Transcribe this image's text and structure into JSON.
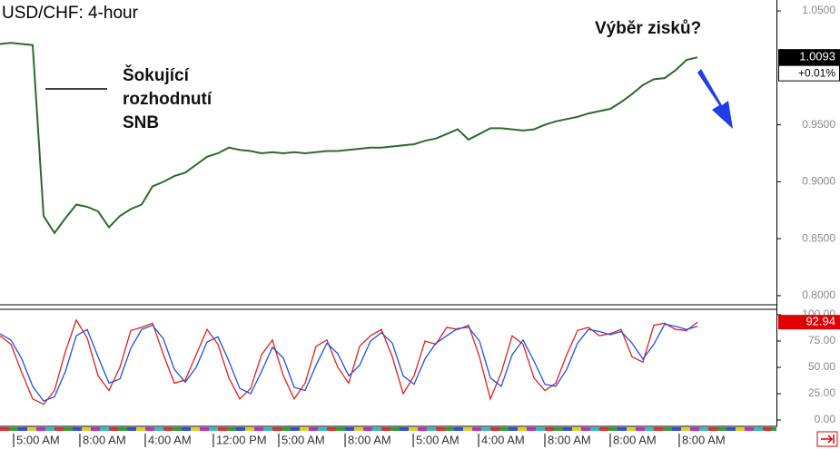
{
  "chart_data": [
    {
      "type": "line",
      "title": "USD/CHF: 4-hour",
      "annotations": [
        "Šokující",
        "rozhodnutí",
        "SNB",
        "Výběr zisků?"
      ],
      "current": {
        "value": 1.0093,
        "label": "1.0093"
      },
      "change_label": "+0.01%",
      "xlim": [
        0,
        71.25
      ],
      "ylim": [
        0.792,
        1.0596
      ],
      "yticks": [
        {
          "value": 1.05,
          "label": "1.0500"
        },
        {
          "value": 0.95,
          "label": "0.9500"
        },
        {
          "value": 0.9,
          "label": "0.9000"
        },
        {
          "value": 0.85,
          "label": "0.8500"
        },
        {
          "value": 0.8,
          "label": "0.8000"
        }
      ],
      "x": [
        0,
        1,
        2,
        3,
        4,
        5,
        6,
        7,
        8,
        9,
        10,
        11,
        12,
        13,
        14,
        15,
        16,
        17,
        18,
        19,
        20,
        21,
        22,
        23,
        24,
        25,
        26,
        27,
        28,
        29,
        30,
        31,
        32,
        33,
        34,
        35,
        36,
        37,
        38,
        39,
        40,
        41,
        42,
        43,
        44,
        45,
        46,
        47,
        48,
        49,
        50,
        51,
        52,
        53,
        54,
        55,
        56,
        57,
        58,
        59,
        60,
        61,
        62,
        63,
        64
      ],
      "series": [
        {
          "name": "USD/CHF",
          "color": "#2d6a2d",
          "values": [
            1.021,
            1.022,
            1.021,
            1.02,
            0.87,
            0.855,
            0.868,
            0.88,
            0.878,
            0.874,
            0.86,
            0.87,
            0.876,
            0.88,
            0.896,
            0.9,
            0.905,
            0.908,
            0.915,
            0.922,
            0.925,
            0.93,
            0.928,
            0.927,
            0.925,
            0.926,
            0.925,
            0.926,
            0.925,
            0.926,
            0.927,
            0.927,
            0.928,
            0.929,
            0.93,
            0.93,
            0.931,
            0.932,
            0.933,
            0.936,
            0.938,
            0.942,
            0.946,
            0.937,
            0.942,
            0.947,
            0.947,
            0.946,
            0.945,
            0.946,
            0.95,
            0.953,
            0.955,
            0.957,
            0.96,
            0.962,
            0.964,
            0.97,
            0.977,
            0.985,
            0.99,
            0.991,
            0.998,
            1.007,
            1.0093
          ]
        }
      ]
    },
    {
      "type": "line",
      "current": {
        "value": 92.94,
        "label": "92.94"
      },
      "xlim": [
        0,
        71.25
      ],
      "ylim": [
        -6,
        106
      ],
      "yticks": [
        {
          "value": 100,
          "label": "100.00"
        },
        {
          "value": 75,
          "label": "75.00"
        },
        {
          "value": 50,
          "label": "50.00"
        },
        {
          "value": 25,
          "label": "25.00"
        },
        {
          "value": 0,
          "label": "0.00"
        }
      ],
      "xticks": [
        {
          "value": 1.25,
          "label": "5:00 AM"
        },
        {
          "value": 7.33,
          "label": "8:00 AM"
        },
        {
          "value": 13.33,
          "label": "4:00 AM"
        },
        {
          "value": 19.58,
          "label": "12:00 PM"
        },
        {
          "value": 25.58,
          "label": "5:00 AM"
        },
        {
          "value": 31.67,
          "label": "8:00 AM"
        },
        {
          "value": 37.92,
          "label": "5:00 AM"
        },
        {
          "value": 43.92,
          "label": "4:00 AM"
        },
        {
          "value": 50,
          "label": "8:00 AM"
        },
        {
          "value": 56,
          "label": "8:00 AM"
        },
        {
          "value": 62.33,
          "label": "8:00 AM"
        }
      ],
      "x": [
        0,
        1,
        2,
        3,
        4,
        5,
        6,
        7,
        8,
        9,
        10,
        11,
        12,
        13,
        14,
        15,
        16,
        17,
        18,
        19,
        20,
        21,
        22,
        23,
        24,
        25,
        26,
        27,
        28,
        29,
        30,
        31,
        32,
        33,
        34,
        35,
        36,
        37,
        38,
        39,
        40,
        41,
        42,
        43,
        44,
        45,
        46,
        47,
        48,
        49,
        50,
        51,
        52,
        53,
        54,
        55,
        56,
        57,
        58,
        59,
        60,
        61,
        62,
        63,
        64
      ],
      "series": [
        {
          "color": "#e02020",
          "values": [
            80,
            72,
            45,
            20,
            15,
            28,
            65,
            95,
            78,
            42,
            28,
            50,
            85,
            88,
            92,
            62,
            35,
            38,
            62,
            86,
            72,
            40,
            20,
            30,
            62,
            76,
            42,
            20,
            35,
            70,
            76,
            50,
            35,
            70,
            80,
            86,
            60,
            25,
            42,
            75,
            72,
            88,
            86,
            90,
            60,
            20,
            45,
            80,
            72,
            40,
            28,
            35,
            62,
            85,
            88,
            80,
            82,
            86,
            60,
            55,
            90,
            92,
            86,
            85,
            92.94
          ]
        },
        {
          "color": "#2050e0",
          "values": [
            82,
            76,
            58,
            32,
            18,
            22,
            46,
            80,
            86,
            60,
            35,
            39,
            68,
            86,
            90,
            77,
            48,
            36,
            50,
            74,
            79,
            56,
            30,
            25,
            46,
            69,
            59,
            31,
            28,
            52,
            73,
            63,
            42,
            52,
            75,
            83,
            73,
            42,
            34,
            58,
            73,
            80,
            87,
            88,
            75,
            40,
            32,
            62,
            76,
            56,
            34,
            32,
            48,
            73,
            86,
            84,
            81,
            84,
            73,
            58,
            72,
            91,
            89,
            86,
            89
          ]
        }
      ]
    }
  ]
}
